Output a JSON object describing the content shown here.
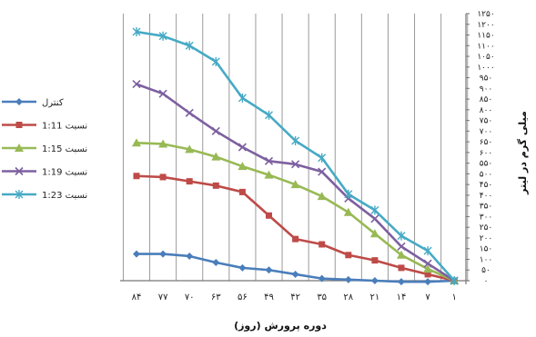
{
  "chart_data": {
    "type": "line",
    "xlabel": "دوره پرورش (روز)",
    "ylabel": "میلی گرم در لیتر",
    "categories": [
      "۸۴",
      "۷۷",
      "۷۰",
      "۶۳",
      "۵۶",
      "۴۹",
      "۴۲",
      "۳۵",
      "۲۸",
      "۲۱",
      "۱۴",
      "۷",
      "۱"
    ],
    "y_ticks": [
      "۰",
      "۵۰",
      "۱۰۰",
      "۱۵۰",
      "۲۰۰",
      "۲۵۰",
      "۳۰۰",
      "۳۵۰",
      "۴۰۰",
      "۴۵۰",
      "۵۰۰",
      "۵۵۰",
      "۶۰۰",
      "۶۵۰",
      "۷۰۰",
      "۷۵۰",
      "۸۰۰",
      "۸۵۰",
      "۹۰۰",
      "۹۵۰",
      "۱۰۰۰",
      "۱۰۵۰",
      "۱۱۰۰",
      "۱۱۵۰",
      "۱۲۰۰",
      "۱۲۵۰"
    ],
    "ylim": [
      0,
      1250
    ],
    "grid": "vertical",
    "legend_position": "left",
    "series": [
      {
        "name": "کنترل",
        "color": "#4a7ebb",
        "marker": "diamond",
        "values": [
          125,
          125,
          115,
          85,
          60,
          50,
          30,
          10,
          5,
          0,
          -5,
          -5,
          0
        ]
      },
      {
        "name": "نسبت 1:11",
        "color": "#be4b48",
        "marker": "square",
        "values": [
          490,
          485,
          465,
          445,
          415,
          305,
          195,
          170,
          120,
          95,
          60,
          30,
          0
        ]
      },
      {
        "name": "نسبت 1:15",
        "color": "#98b954",
        "marker": "triangle",
        "values": [
          645,
          640,
          615,
          580,
          535,
          495,
          450,
          395,
          320,
          220,
          120,
          55,
          0
        ]
      },
      {
        "name": "نسبت 1:19",
        "color": "#7d60a0",
        "marker": "x",
        "values": [
          920,
          875,
          785,
          700,
          625,
          560,
          545,
          510,
          385,
          290,
          160,
          80,
          0
        ]
      },
      {
        "name": "نسبت 1:23",
        "color": "#46aac5",
        "marker": "star",
        "values": [
          1165,
          1145,
          1100,
          1025,
          855,
          775,
          655,
          575,
          405,
          330,
          210,
          140,
          0
        ]
      }
    ]
  }
}
